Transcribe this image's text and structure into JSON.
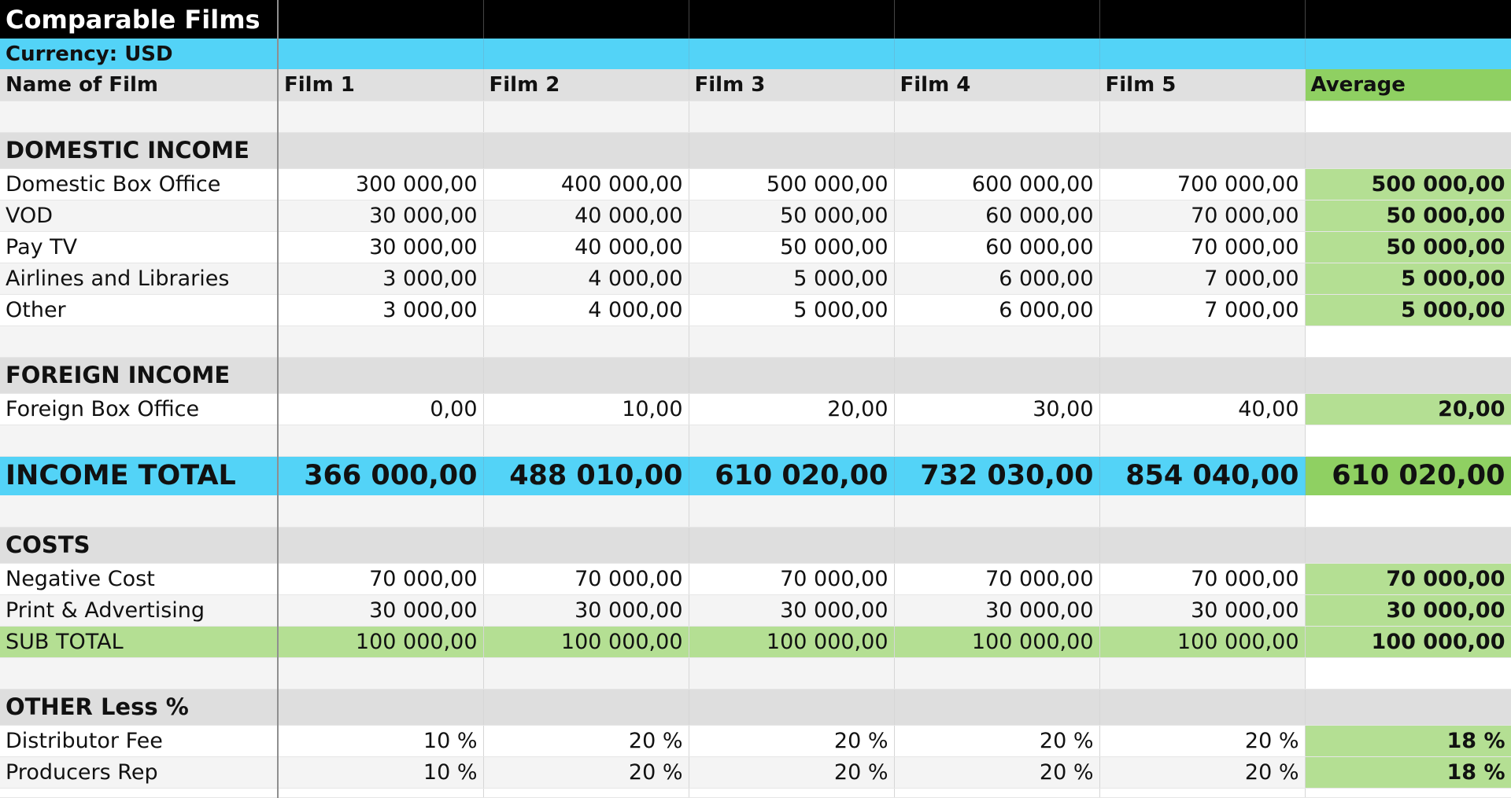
{
  "sheet": {
    "title": "Comparable Films",
    "currency": "Currency: USD",
    "header": [
      "Name of Film",
      "Film 1",
      "Film 2",
      "Film 3",
      "Film 4",
      "Film 5",
      "Average"
    ],
    "sections": {
      "domestic": {
        "title": "DOMESTIC INCOME",
        "rows": [
          [
            "Domestic Box Office",
            "300 000,00",
            "400 000,00",
            "500 000,00",
            "600 000,00",
            "700 000,00",
            "500 000,00"
          ],
          [
            "VOD",
            "30 000,00",
            "40 000,00",
            "50 000,00",
            "60 000,00",
            "70 000,00",
            "50 000,00"
          ],
          [
            "Pay TV",
            "30 000,00",
            "40 000,00",
            "50 000,00",
            "60 000,00",
            "70 000,00",
            "50 000,00"
          ],
          [
            "Airlines and Libraries",
            "3 000,00",
            "4 000,00",
            "5 000,00",
            "6 000,00",
            "7 000,00",
            "5 000,00"
          ],
          [
            "Other",
            "3 000,00",
            "4 000,00",
            "5 000,00",
            "6 000,00",
            "7 000,00",
            "5 000,00"
          ]
        ]
      },
      "foreign": {
        "title": "FOREIGN INCOME",
        "rows": [
          [
            "Foreign Box Office",
            "0,00",
            "10,00",
            "20,00",
            "30,00",
            "40,00",
            "20,00"
          ]
        ]
      },
      "income_total": [
        "INCOME TOTAL",
        "366 000,00",
        "488 010,00",
        "610 020,00",
        "732 030,00",
        "854 040,00",
        "610 020,00"
      ],
      "costs": {
        "title": "COSTS",
        "rows": [
          [
            "Negative Cost",
            "70 000,00",
            "70 000,00",
            "70 000,00",
            "70 000,00",
            "70 000,00",
            "70 000,00"
          ],
          [
            "Print & Advertising",
            "30 000,00",
            "30 000,00",
            "30 000,00",
            "30 000,00",
            "30 000,00",
            "30 000,00"
          ]
        ],
        "subtotal": [
          "SUB TOTAL",
          "100 000,00",
          "100 000,00",
          "100 000,00",
          "100 000,00",
          "100 000,00",
          "100 000,00"
        ]
      },
      "other": {
        "title": "OTHER Less %",
        "rows": [
          [
            "Distributor Fee",
            "10 %",
            "20 %",
            "20 %",
            "20 %",
            "20 %",
            "18 %"
          ],
          [
            "Producers Rep",
            "10 %",
            "20 %",
            "20 %",
            "20 %",
            "20 %",
            "18 %"
          ]
        ]
      }
    }
  }
}
